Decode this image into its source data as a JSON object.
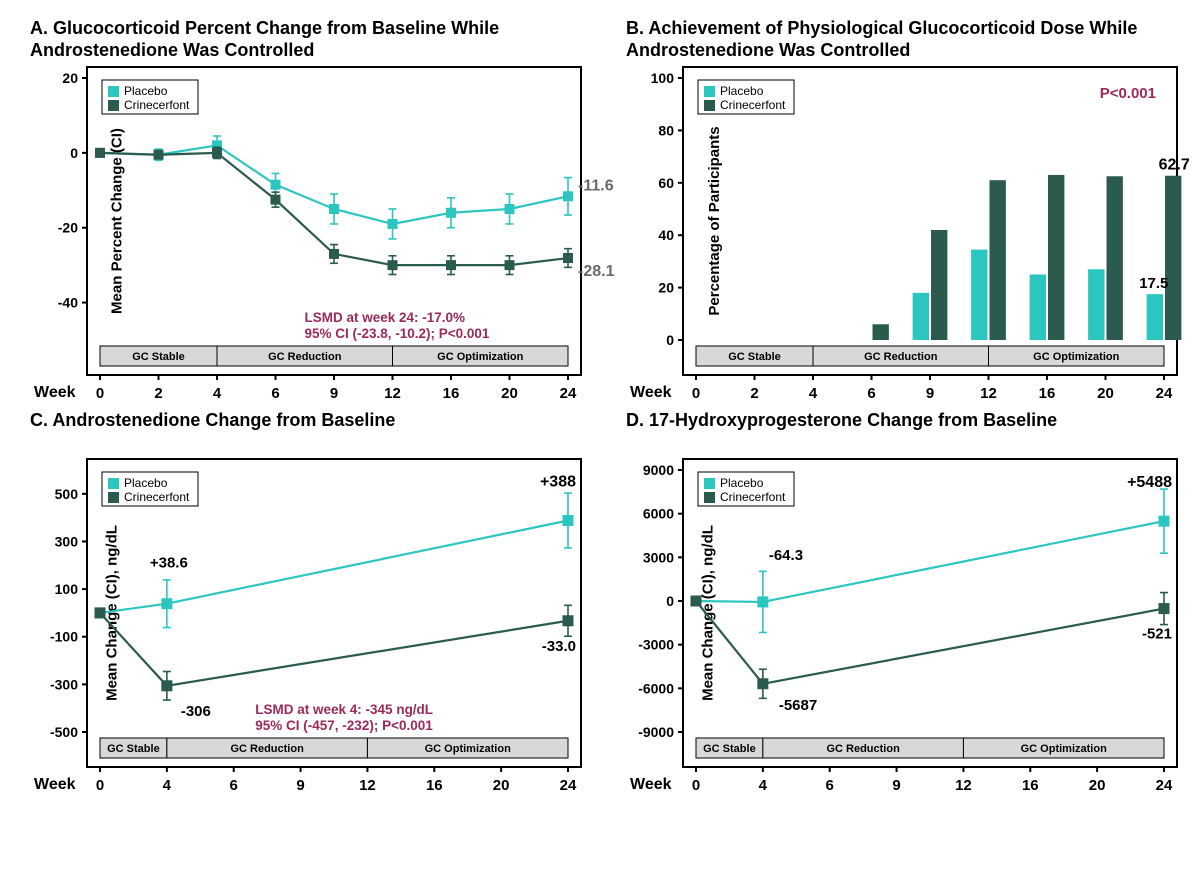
{
  "colors": {
    "placebo": "#2cc6c0",
    "crinecerfont": "#2b5a4f",
    "stat_note": "#9a2a5a",
    "axis": "#000000",
    "phase_bg": "#d8d8d8",
    "grey_label": "#6a6a6a",
    "pvalue": "#9a2a5a"
  },
  "legend": {
    "placebo": "Placebo",
    "crinecerfont": "Crinecerfont"
  },
  "phases": {
    "a": [
      "GC Stable",
      "GC Reduction",
      "GC Optimization"
    ],
    "b": [
      "GC Stable",
      "GC Reduction",
      "GC Optimization"
    ],
    "cd": [
      "GC Stable",
      "GC Reduction",
      "GC Optimization"
    ]
  },
  "week_label": "Week",
  "panelA": {
    "title": "A. Glucocorticoid Percent Change from Baseline\n     While Androstenedione Was Controlled",
    "y_label": "Mean Percent Change (CI)",
    "ylim": [
      -50,
      20
    ],
    "yticks": [
      -40,
      -20,
      0,
      20
    ],
    "xticks": [
      0,
      2,
      4,
      6,
      9,
      12,
      16,
      20,
      24
    ],
    "placebo": {
      "x": [
        0,
        2,
        4,
        6,
        9,
        12,
        16,
        20,
        24
      ],
      "y": [
        0,
        -0.5,
        2.0,
        -8.5,
        -15.0,
        -19.0,
        -16.0,
        -15.0,
        -11.6
      ],
      "err": [
        0,
        1.5,
        2.5,
        3,
        4,
        4,
        4,
        4,
        5
      ]
    },
    "crinecerfont": {
      "x": [
        0,
        2,
        4,
        6,
        9,
        12,
        16,
        20,
        24
      ],
      "y": [
        0,
        -0.5,
        0.0,
        -12.5,
        -27.0,
        -30.0,
        -30.0,
        -30.0,
        -28.1
      ],
      "err": [
        0,
        1,
        1.5,
        2,
        2.5,
        2.5,
        2.5,
        2.5,
        2.5
      ]
    },
    "end_labels": {
      "placebo": "-11.6",
      "crinecerfont": "-28.1"
    },
    "stat": "LSMD at week 24: -17.0%\n95% CI (-23.8, -10.2); P<0.001",
    "phase_breaks_x": [
      0,
      4,
      12,
      24
    ]
  },
  "panelB": {
    "title": "B. Achievement of Physiological Glucocorticoid Dose\n     While Androstenedione Was Controlled",
    "y_label": "Percentage of Participants",
    "ylim": [
      0,
      100
    ],
    "yticks": [
      0,
      20,
      40,
      60,
      80,
      100
    ],
    "xticks": [
      0,
      2,
      4,
      6,
      9,
      12,
      16,
      20,
      24
    ],
    "placebo": {
      "x": [
        6,
        9,
        12,
        16,
        20,
        24
      ],
      "y": [
        0,
        18.0,
        34.5,
        25.0,
        27.0,
        17.5
      ]
    },
    "crinecerfont": {
      "x": [
        6,
        9,
        12,
        16,
        20,
        24
      ],
      "y": [
        6.0,
        42.0,
        61.0,
        63.0,
        62.5,
        62.7
      ]
    },
    "end_labels": {
      "placebo": "17.5",
      "crinecerfont": "62.7"
    },
    "pvalue": "P<0.001",
    "phase_breaks_x": [
      0,
      4,
      12,
      24
    ]
  },
  "panelC": {
    "title": "C. Androstenedione Change from Baseline",
    "y_label": "Mean Change (CI), ng/dL",
    "ylim": [
      -500,
      600
    ],
    "yticks": [
      -500,
      -300,
      -100,
      100,
      300,
      500
    ],
    "xticks": [
      0,
      4,
      6,
      9,
      12,
      16,
      20,
      24
    ],
    "placebo": {
      "x": [
        0,
        4,
        24
      ],
      "y": [
        0,
        38.6,
        388
      ],
      "err": [
        0,
        100,
        115
      ]
    },
    "crinecerfont": {
      "x": [
        0,
        4,
        24
      ],
      "y": [
        0,
        -306,
        -33.0
      ],
      "err": [
        0,
        60,
        65
      ]
    },
    "point_labels": {
      "p4": "+38.6",
      "c4": "-306",
      "p24": "+388",
      "c24": "-33.0"
    },
    "stat": "LSMD at week 4: -345 ng/dL\n95% CI (-457, -232); P<0.001",
    "phase_breaks_x": [
      0,
      4,
      12,
      24
    ]
  },
  "panelD": {
    "title": "D. 17-Hydroxyprogesterone Change from Baseline",
    "y_label": "Mean Change (CI), ng/dL",
    "ylim": [
      -9000,
      9000
    ],
    "yticks": [
      -9000,
      -6000,
      -3000,
      0,
      3000,
      6000,
      9000
    ],
    "xticks": [
      0,
      4,
      6,
      9,
      12,
      16,
      20,
      24
    ],
    "placebo": {
      "x": [
        0,
        4,
        24
      ],
      "y": [
        0,
        -64.3,
        5488
      ],
      "err": [
        0,
        2100,
        2200
      ]
    },
    "crinecerfont": {
      "x": [
        0,
        4,
        24
      ],
      "y": [
        0,
        -5687,
        -521
      ],
      "err": [
        0,
        1000,
        1100
      ]
    },
    "point_labels": {
      "p4": "-64.3",
      "c4": "-5687",
      "p24": "+5488",
      "c24": "-521"
    },
    "phase_breaks_x": [
      0,
      4,
      12,
      24
    ]
  }
}
